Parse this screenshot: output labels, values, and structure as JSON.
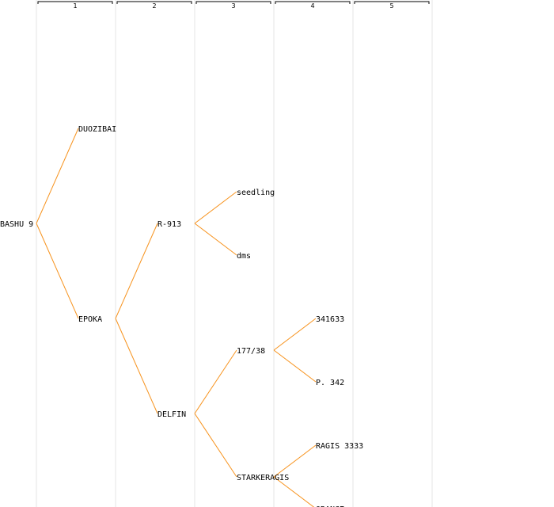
{
  "colors": {
    "edge": "#f7931e",
    "guide": "#e6e6e6",
    "bracket": "#000000"
  },
  "columns": [
    "1",
    "2",
    "3",
    "4",
    "5"
  ],
  "tree": {
    "root": "BASHU 9",
    "nodes": [
      {
        "id": "n0",
        "label": "BASHU 9",
        "generation": 0,
        "parent": null
      },
      {
        "id": "n1",
        "label": "DUOZIBAI",
        "generation": 1,
        "parent": "n0"
      },
      {
        "id": "n2",
        "label": "EPOKA",
        "generation": 1,
        "parent": "n0"
      },
      {
        "id": "n3",
        "label": "R-913",
        "generation": 2,
        "parent": "n2"
      },
      {
        "id": "n4",
        "label": "DELFIN",
        "generation": 2,
        "parent": "n2"
      },
      {
        "id": "n5",
        "label": "seedling",
        "generation": 3,
        "parent": "n3"
      },
      {
        "id": "n6",
        "label": "dms",
        "generation": 3,
        "parent": "n3"
      },
      {
        "id": "n7",
        "label": "177/38",
        "generation": 3,
        "parent": "n4"
      },
      {
        "id": "n8",
        "label": "STARKERAGIS",
        "generation": 3,
        "parent": "n4"
      },
      {
        "id": "n9",
        "label": "341633",
        "generation": 4,
        "parent": "n7"
      },
      {
        "id": "n10",
        "label": "P. 342",
        "generation": 4,
        "parent": "n7"
      },
      {
        "id": "n11",
        "label": "RAGIS 3333",
        "generation": 4,
        "parent": "n8"
      },
      {
        "id": "n12",
        "label": "ORANGE",
        "generation": 4,
        "parent": "n8"
      }
    ]
  }
}
